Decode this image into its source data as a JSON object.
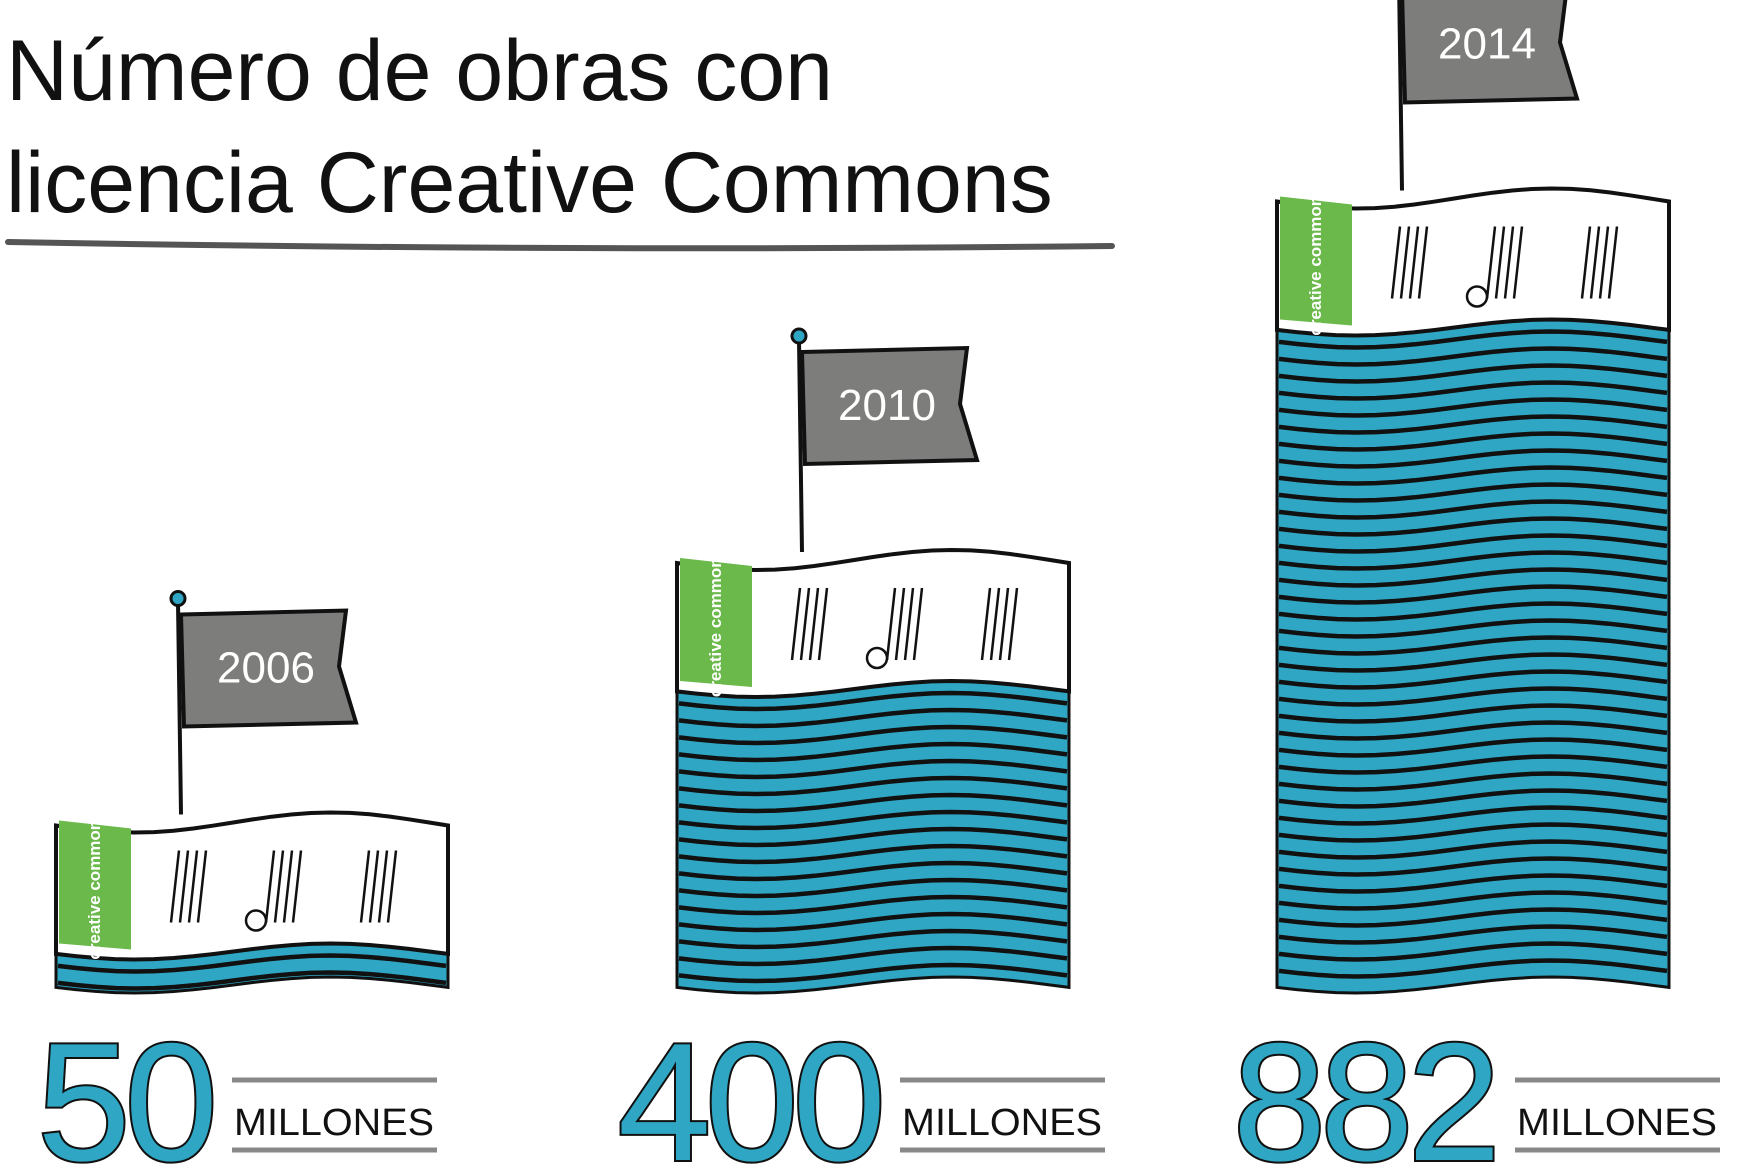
{
  "chart_data": {
    "type": "bar",
    "title": "Número de obras con licencia Creative Commons",
    "categories": [
      "2006",
      "2010",
      "2014"
    ],
    "values": [
      50,
      400,
      882
    ],
    "unit_label": "MILLONES",
    "logo_text": "creative commons",
    "color": "#2fa7c4",
    "flag_color": "#7d7d7b",
    "logo_color": "#6ab94a"
  }
}
